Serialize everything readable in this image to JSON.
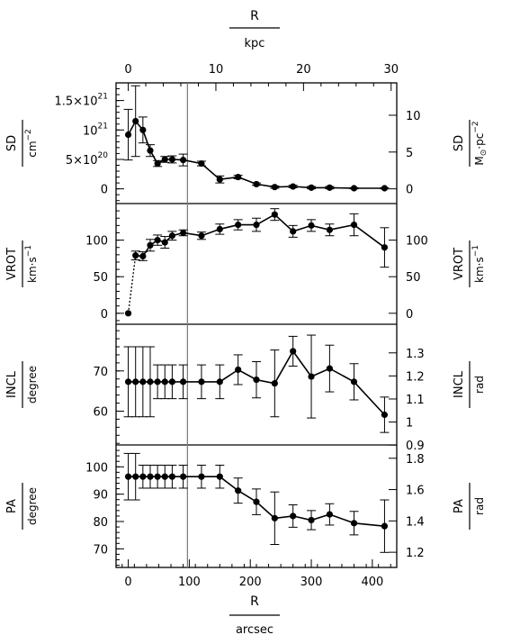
{
  "chart_data": [
    {
      "type": "line",
      "panel": "SD",
      "left_axis": {
        "label": "SD",
        "unit_label": "cm",
        "unit_exp": "−2",
        "ylim": [
          -2.5e+20,
          1.8e+21
        ],
        "ticks": [
          {
            "v": 0,
            "t": "0",
            "e": ""
          },
          {
            "v": 5e+20,
            "t": "5×10",
            "e": "20"
          },
          {
            "v": 1e+21,
            "t": "10",
            "e": "21"
          },
          {
            "v": 1.5e+21,
            "t": "1.5×10",
            "e": "21"
          }
        ]
      },
      "right_axis": {
        "label": "SD",
        "unit_label": "M",
        "unit_sub": "⊙",
        "unit_rest": "·pc",
        "unit_exp": "−2",
        "ticks": [
          {
            "v": 0,
            "t": "0"
          },
          {
            "v": 5,
            "t": "5"
          },
          {
            "v": 10,
            "t": "10"
          }
        ],
        "per_left_unit": 1.25e+20
      },
      "series": [
        {
          "x": [
            0,
            12,
            24,
            36,
            48,
            60,
            72,
            90,
            120,
            150,
            180,
            210,
            240,
            270,
            300,
            330,
            370,
            420
          ],
          "y": [
            9.2e+20,
            1.15e+21,
            1e+21,
            6.5e+20,
            4.3e+20,
            5e+20,
            5e+20,
            4.9e+20,
            4.3e+20,
            1.6e+20,
            2e+20,
            8e+19,
            3e+19,
            4e+19,
            2e+19,
            2e+19,
            1e+19,
            1e+19
          ],
          "err": [
            4.3e+20,
            6e+20,
            2.2e+20,
            1e+20,
            5e+19,
            5e+19,
            6e+19,
            1e+20,
            4e+19,
            6e+19,
            3e+19,
            2e+19,
            2e+19,
            2e+19,
            2e+19,
            2e+19,
            1e+19,
            1e+19
          ],
          "dotted_first_segment": false
        }
      ]
    },
    {
      "type": "line",
      "panel": "VROT",
      "left_axis": {
        "label": "VROT",
        "unit_label": "km·s",
        "unit_exp": "−1",
        "ylim": [
          -15,
          150
        ],
        "ticks": [
          {
            "v": 0,
            "t": "0"
          },
          {
            "v": 50,
            "t": "50"
          },
          {
            "v": 100,
            "t": "100"
          }
        ]
      },
      "right_axis": {
        "label": "VROT",
        "unit_label": "km·s",
        "unit_exp": "−1",
        "ticks": [
          {
            "v": 0,
            "t": "0"
          },
          {
            "v": 50,
            "t": "50"
          },
          {
            "v": 100,
            "t": "100"
          }
        ],
        "per_left_unit": 1
      },
      "series": [
        {
          "x": [
            0,
            12,
            24,
            36,
            48,
            60,
            72,
            90,
            120,
            150,
            180,
            210,
            240,
            270,
            300,
            330,
            370,
            420
          ],
          "y": [
            0,
            79,
            78,
            93,
            100,
            97,
            106,
            110,
            106,
            115,
            121,
            121,
            135,
            112,
            120,
            114,
            121,
            90
          ],
          "err": [
            0,
            6,
            6,
            8,
            7,
            8,
            6,
            4,
            5,
            7,
            7,
            9,
            8,
            8,
            8,
            8,
            15,
            27
          ],
          "dotted_first_segment": true
        }
      ]
    },
    {
      "type": "line",
      "panel": "INCL",
      "left_axis": {
        "label": "INCL",
        "unit_label": "degree",
        "unit_exp": "",
        "ylim": [
          51.6,
          81.6
        ],
        "ticks": [
          {
            "v": 60,
            "t": "60"
          },
          {
            "v": 70,
            "t": "70"
          }
        ]
      },
      "right_axis": {
        "label": "INCL",
        "unit_label": "rad",
        "unit_exp": "",
        "rad": true,
        "ticks": [
          {
            "v": 0.9,
            "t": "0.9"
          },
          {
            "v": 1.0,
            "t": "1"
          },
          {
            "v": 1.1,
            "t": "1.1"
          },
          {
            "v": 1.2,
            "t": "1.2"
          },
          {
            "v": 1.3,
            "t": "1.3"
          }
        ]
      },
      "series": [
        {
          "x": [
            0,
            12,
            24,
            36,
            48,
            60,
            72,
            90,
            120,
            150,
            180,
            210,
            240,
            270,
            300,
            330,
            370,
            420
          ],
          "y": [
            67.3,
            67.3,
            67.3,
            67.3,
            67.3,
            67.3,
            67.3,
            67.3,
            67.3,
            67.3,
            70.3,
            67.8,
            66.9,
            74.9,
            68.6,
            70.6,
            67.3,
            59.1
          ],
          "err": [
            8.7,
            8.7,
            8.7,
            8.7,
            4.2,
            4.2,
            4.2,
            4.2,
            4.2,
            4.2,
            3.7,
            4.5,
            8.3,
            3.7,
            10.3,
            5.8,
            4.5,
            4.4
          ],
          "dotted_first_segment": false
        }
      ]
    },
    {
      "type": "line",
      "panel": "PA",
      "left_axis": {
        "label": "PA",
        "unit_label": "degree",
        "unit_exp": "",
        "ylim": [
          63.2,
          108
        ],
        "ticks": [
          {
            "v": 70,
            "t": "70"
          },
          {
            "v": 80,
            "t": "80"
          },
          {
            "v": 90,
            "t": "90"
          },
          {
            "v": 100,
            "t": "100"
          }
        ]
      },
      "right_axis": {
        "label": "PA",
        "unit_label": "rad",
        "unit_exp": "",
        "rad": true,
        "ticks": [
          {
            "v": 1.2,
            "t": "1.2"
          },
          {
            "v": 1.4,
            "t": "1.4"
          },
          {
            "v": 1.6,
            "t": "1.6"
          },
          {
            "v": 1.8,
            "t": "1.8"
          }
        ]
      },
      "series": [
        {
          "x": [
            0,
            12,
            24,
            36,
            48,
            60,
            72,
            90,
            120,
            150,
            180,
            210,
            240,
            270,
            300,
            330,
            370,
            420
          ],
          "y": [
            96.4,
            96.4,
            96.4,
            96.4,
            96.4,
            96.4,
            96.4,
            96.4,
            96.4,
            96.4,
            91.3,
            87.2,
            81.2,
            82.0,
            80.5,
            82.6,
            79.4,
            78.3
          ],
          "err": [
            8.5,
            8.5,
            4.2,
            4.2,
            4.2,
            4.2,
            4.2,
            4.2,
            4.2,
            4.2,
            4.6,
            4.7,
            9.6,
            4.1,
            3.5,
            3.9,
            4.3,
            9.6
          ],
          "dotted_first_segment": false
        }
      ]
    }
  ],
  "bottom_axis": {
    "label": "R",
    "unit": "arcsec",
    "xlim": [
      -20,
      440
    ],
    "ticks": [
      {
        "v": 0,
        "t": "0"
      },
      {
        "v": 100,
        "t": "100"
      },
      {
        "v": 200,
        "t": "200"
      },
      {
        "v": 300,
        "t": "300"
      },
      {
        "v": 400,
        "t": "400"
      }
    ]
  },
  "top_axis": {
    "label": "R",
    "unit": "kpc",
    "ticks": [
      {
        "v": 0,
        "t": "0"
      },
      {
        "v": 10,
        "t": "10"
      },
      {
        "v": 20,
        "t": "20"
      },
      {
        "v": 30,
        "t": "30"
      }
    ],
    "arcsec_per_kpc": 14.36
  },
  "vertical_line_x": 97,
  "style": {
    "line_color": "#000000",
    "vline_color": "#777777"
  }
}
